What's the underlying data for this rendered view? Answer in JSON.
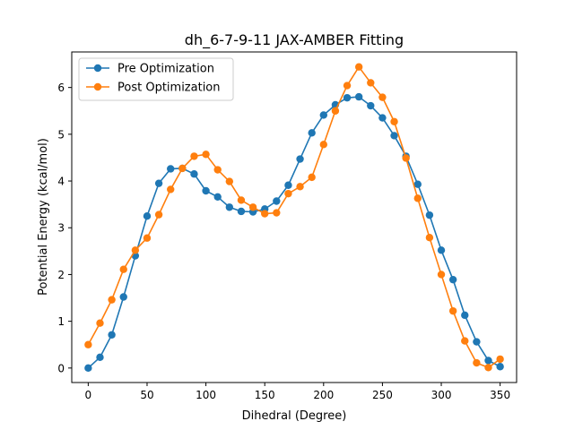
{
  "chart_data": {
    "type": "line",
    "title": "dh_6-7-9-11 JAX-AMBER Fitting",
    "xlabel": "Dihedral (Degree)",
    "ylabel": "Potential Energy (kcal/mol)",
    "xlim": [
      -14,
      364
    ],
    "ylim": [
      -0.31,
      6.76
    ],
    "xticks": [
      0,
      50,
      100,
      150,
      200,
      250,
      300,
      350
    ],
    "yticks": [
      0,
      1,
      2,
      3,
      4,
      5,
      6
    ],
    "grid": false,
    "legend_position": "upper-left",
    "x": [
      0,
      10,
      20,
      30,
      40,
      50,
      60,
      70,
      80,
      90,
      100,
      110,
      120,
      130,
      140,
      150,
      160,
      170,
      180,
      190,
      200,
      210,
      220,
      230,
      240,
      250,
      260,
      270,
      280,
      290,
      300,
      310,
      320,
      330,
      340,
      350
    ],
    "series": [
      {
        "name": "Pre Optimization",
        "color": "#1f77b4",
        "values": [
          0.0,
          0.23,
          0.71,
          1.52,
          2.4,
          3.25,
          3.95,
          4.26,
          4.27,
          4.15,
          3.79,
          3.66,
          3.44,
          3.35,
          3.34,
          3.4,
          3.57,
          3.91,
          4.47,
          5.03,
          5.41,
          5.63,
          5.78,
          5.8,
          5.61,
          5.35,
          4.97,
          4.53,
          3.93,
          3.27,
          2.52,
          1.89,
          1.13,
          0.56,
          0.16,
          0.03
        ]
      },
      {
        "name": "Post Optimization",
        "color": "#ff7f0e",
        "values": [
          0.5,
          0.96,
          1.46,
          2.11,
          2.52,
          2.78,
          3.28,
          3.82,
          4.27,
          4.53,
          4.57,
          4.24,
          3.99,
          3.59,
          3.44,
          3.3,
          3.32,
          3.73,
          3.88,
          4.08,
          4.78,
          5.5,
          6.04,
          6.44,
          6.1,
          5.79,
          5.27,
          4.49,
          3.63,
          2.79,
          2.0,
          1.22,
          0.58,
          0.11,
          0.01,
          0.19
        ]
      }
    ]
  }
}
